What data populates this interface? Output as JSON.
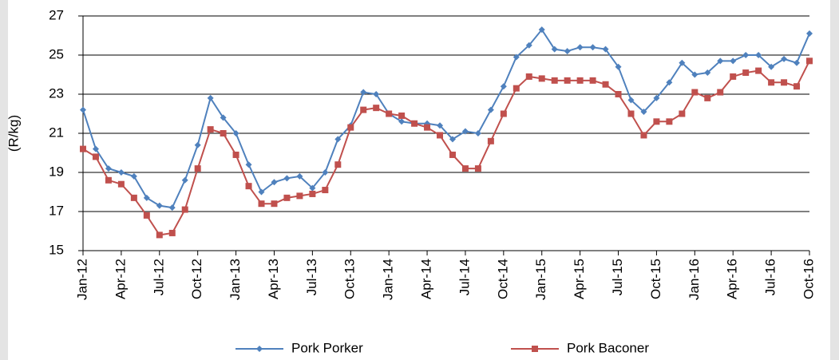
{
  "chart_data": {
    "type": "line",
    "y_label": "(R/kg)",
    "categories": [
      "Jan-12",
      null,
      null,
      "Apr-12",
      null,
      null,
      "Jul-12",
      null,
      null,
      "Oct-12",
      null,
      null,
      "Jan-13",
      null,
      null,
      "Apr-13",
      null,
      null,
      "Jul-13",
      null,
      null,
      "Oct-13",
      null,
      null,
      "Jan-14",
      null,
      null,
      "Apr-14",
      null,
      null,
      "Jul-14",
      null,
      null,
      "Oct-14",
      null,
      null,
      "Jan-15",
      null,
      null,
      "Apr-15",
      null,
      null,
      "Jul-15",
      null,
      null,
      "Oct-15",
      null,
      null,
      "Jan-16",
      null,
      null,
      "Apr-16",
      null,
      null,
      "Jul-16",
      null,
      null,
      "Oct-16"
    ],
    "series": [
      {
        "name": "Pork Porker",
        "color": "#4f81bd",
        "marker": "diamond",
        "values": [
          22.2,
          20.2,
          19.2,
          19.0,
          18.8,
          17.7,
          17.3,
          17.2,
          18.6,
          20.4,
          22.8,
          21.8,
          21.0,
          19.4,
          18.0,
          18.5,
          18.7,
          18.8,
          18.2,
          19.0,
          20.7,
          21.4,
          23.1,
          23.0,
          22.0,
          21.6,
          21.5,
          21.5,
          21.4,
          20.7,
          21.1,
          21.0,
          22.2,
          23.4,
          24.9,
          25.5,
          26.3,
          25.3,
          25.2,
          25.4,
          25.4,
          25.3,
          24.4,
          22.7,
          22.1,
          22.8,
          23.6,
          24.6,
          24.0,
          24.1,
          24.7,
          24.7,
          25.0,
          25.0,
          24.4,
          24.8,
          24.6,
          26.1
        ]
      },
      {
        "name": "Pork Baconer",
        "color": "#c0504d",
        "marker": "square",
        "values": [
          20.2,
          19.8,
          18.6,
          18.4,
          17.7,
          16.8,
          15.8,
          15.9,
          17.1,
          19.2,
          21.2,
          21.0,
          19.9,
          18.3,
          17.4,
          17.4,
          17.7,
          17.8,
          17.9,
          18.1,
          19.4,
          21.3,
          22.2,
          22.3,
          22.0,
          21.9,
          21.5,
          21.3,
          20.9,
          19.9,
          19.2,
          19.2,
          20.6,
          22.0,
          23.3,
          23.9,
          23.8,
          23.7,
          23.7,
          23.7,
          23.7,
          23.5,
          23.0,
          22.0,
          20.9,
          21.6,
          21.6,
          22.0,
          23.1,
          22.8,
          23.1,
          23.9,
          24.1,
          24.2,
          23.6,
          23.6,
          23.4,
          24.7
        ]
      }
    ],
    "ylim": [
      15,
      27
    ],
    "yticks": [
      15,
      17,
      19,
      21,
      23,
      25,
      27
    ],
    "grid": true,
    "legend": "bottom"
  }
}
